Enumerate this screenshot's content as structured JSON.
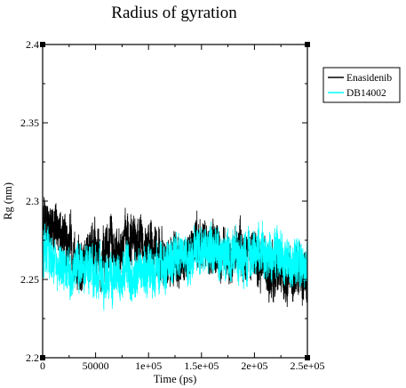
{
  "chart_data": {
    "type": "line",
    "title": "Radius of gyration",
    "xlabel": "Time (ps)",
    "ylabel": "Rg (nm)",
    "xlim": [
      0,
      250000
    ],
    "ylim": [
      2.2,
      2.4
    ],
    "x_ticks": [
      0,
      50000,
      100000,
      150000,
      200000,
      250000
    ],
    "x_tick_labels": [
      "0",
      "50000",
      "1e+05",
      "1.5e+05",
      "2e+05",
      "2.5e+05"
    ],
    "y_ticks": [
      2.2,
      2.25,
      2.3,
      2.35,
      2.4
    ],
    "y_tick_labels": [
      "2.2",
      "2.25",
      "2.3",
      "2.35",
      "2.4"
    ],
    "grid": false,
    "legend_position": "right",
    "series": [
      {
        "name": "Enasidenib",
        "color": "#000000",
        "mean_profile": {
          "x": [
            0,
            10000,
            20000,
            30000,
            40000,
            50000,
            60000,
            70000,
            80000,
            90000,
            100000,
            110000,
            120000,
            130000,
            140000,
            150000,
            160000,
            170000,
            180000,
            190000,
            200000,
            210000,
            220000,
            230000,
            240000,
            250000
          ],
          "y": [
            2.282,
            2.285,
            2.276,
            2.268,
            2.262,
            2.268,
            2.266,
            2.268,
            2.275,
            2.272,
            2.27,
            2.264,
            2.259,
            2.262,
            2.27,
            2.272,
            2.27,
            2.268,
            2.266,
            2.269,
            2.264,
            2.258,
            2.252,
            2.25,
            2.249,
            2.251
          ]
        },
        "noise_amplitude": 0.014,
        "range": [
          2.222,
          2.33
        ]
      },
      {
        "name": "DB14002",
        "color": "#00ffff",
        "mean_profile": {
          "x": [
            0,
            10000,
            20000,
            30000,
            40000,
            50000,
            60000,
            70000,
            80000,
            90000,
            100000,
            110000,
            120000,
            130000,
            140000,
            150000,
            160000,
            170000,
            180000,
            190000,
            200000,
            210000,
            220000,
            230000,
            240000,
            250000
          ],
          "y": [
            2.268,
            2.264,
            2.258,
            2.256,
            2.259,
            2.255,
            2.25,
            2.253,
            2.256,
            2.252,
            2.254,
            2.258,
            2.262,
            2.265,
            2.266,
            2.268,
            2.267,
            2.266,
            2.264,
            2.266,
            2.268,
            2.266,
            2.264,
            2.262,
            2.263,
            2.262
          ]
        },
        "noise_amplitude": 0.013,
        "range": [
          2.213,
          2.32
        ]
      }
    ]
  }
}
